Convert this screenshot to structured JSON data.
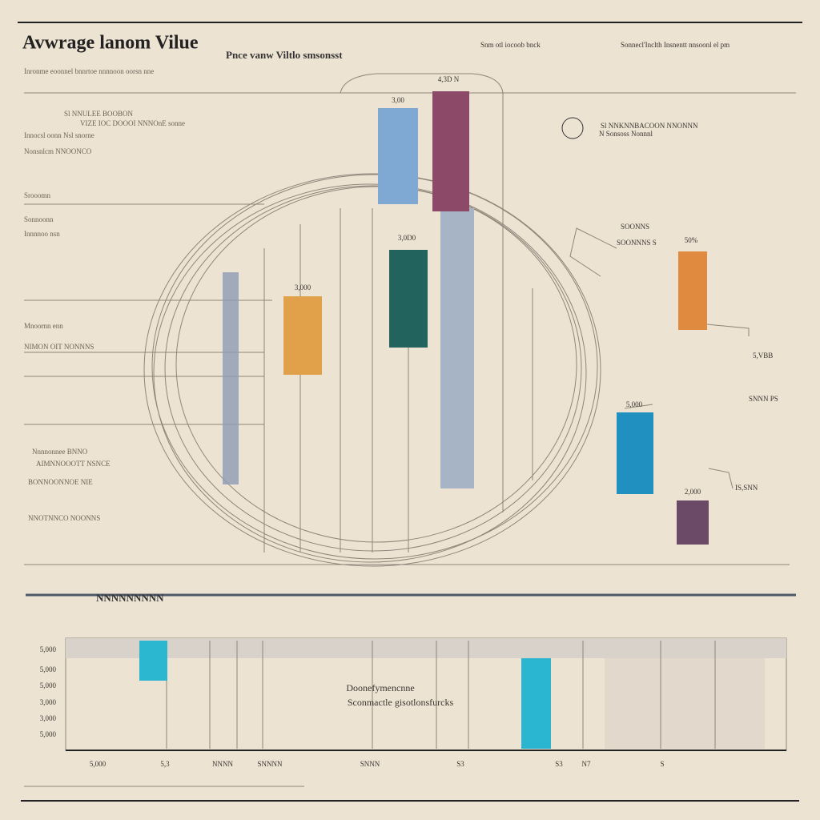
{
  "header": {
    "title": "Avwrage lanom Vilue",
    "subtitle": "Pnce vanw Viltlo smsonsst",
    "notes": [
      "Snm otl iocoob bnck",
      "Sonnecl'Inclth Insnentt nnsoonl el pm"
    ]
  },
  "left_notes": [
    "Inronme eoonnel bnnrtoe nnnnoon oorsn nne",
    "Sl NNULEE BOOBON",
    "VIZE IOC DOOOI NNNOnE sonne",
    "Innocsl oonn Nsl snorne",
    "Nonsnlcm NNOONCO",
    "Srooomn",
    "Sonnoonn",
    "Innnnoo nsn",
    "Mnoornn enn",
    "NIMON OIT NONNNS",
    "Nnnnonnee BNNO",
    "AIMNNOOOTT NSNCE",
    "BONNOONNOE NIE",
    "NNOTNNCO NOONNS"
  ],
  "bar_labels": [
    "3,00",
    "4,3D N",
    "3,0D0",
    "3,000",
    "50%",
    "5,000",
    "2,000"
  ],
  "right_labels": [
    "Sl NNKNNBACOON NNONNN",
    "N Sonsoss Nonnnl",
    "SOONNS",
    "SOONNNS S",
    "5,VBB",
    "SNNN PS",
    "IS,SNN"
  ],
  "lower": {
    "heading": "NNNNNNNNN",
    "y_labels": [
      "5,000",
      "5,000",
      "5,000",
      "3,000",
      "3,000",
      "5,000"
    ],
    "x_labels": [
      "5,000",
      "5,3",
      "NNNN",
      "SNNNN",
      "SNNN",
      "S3",
      "S3",
      "N7",
      "S"
    ],
    "caption": [
      "Doonefymencnne",
      "Sconmactle gisotlonsfurcks"
    ]
  }
}
